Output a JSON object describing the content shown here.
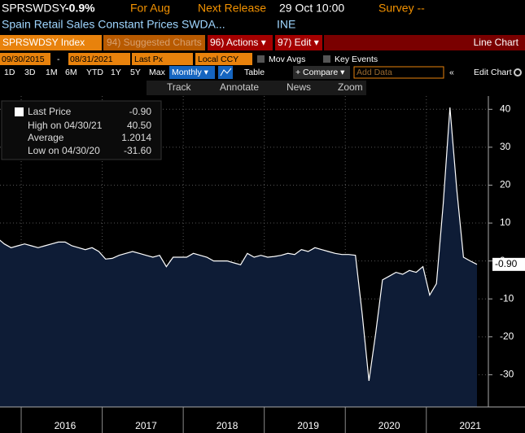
{
  "header": {
    "ticker": "SPRSWDSY",
    "change": "-0.9%",
    "period": "For Aug",
    "release_label": "Next Release",
    "release": "29 Oct 10:00",
    "survey": "Survey --",
    "description": "Spain Retail Sales Constant Prices SWDA...",
    "source": "INE"
  },
  "toolbar": {
    "security": "SPRSWDSY Index",
    "suggested": "94) Suggested Charts",
    "actions": "96) Actions ▾",
    "edit": "97) Edit ▾",
    "chart_kind": "Line Chart",
    "start_date": "09/30/2015",
    "dash": "-",
    "end_date": "08/31/2021",
    "field": "Last Px",
    "currency": "Local CCY",
    "mov_avgs": "Mov Avgs",
    "key_events": "Key Events",
    "ranges": [
      "1D",
      "3D",
      "1M",
      "6M",
      "YTD",
      "1Y",
      "5Y",
      "Max"
    ],
    "frequency": "Monthly ▾",
    "table": "Table",
    "compare": "+ Compare ▾",
    "add_data": "Add Data",
    "collapse": "«",
    "edit_chart": "Edit Chart",
    "tools": [
      "Track",
      "Annotate",
      "News",
      "Zoom"
    ]
  },
  "legend": {
    "items": [
      {
        "label": "Last Price",
        "value": "-0.90"
      },
      {
        "label": "High on 04/30/21",
        "value": "40.50"
      },
      {
        "label": "Average",
        "value": "1.2014"
      },
      {
        "label": "Low on 04/30/20",
        "value": "-31.60"
      }
    ]
  },
  "chart_data": {
    "type": "area",
    "color": "#ffffff",
    "fill": "#0e1c36",
    "categories": [
      null,
      null,
      null,
      null,
      null,
      null,
      null,
      null,
      null,
      null,
      "2016",
      null,
      null,
      null,
      null,
      null,
      null,
      null,
      null,
      null,
      null,
      null,
      "2017",
      null,
      null,
      null,
      null,
      null,
      null,
      null,
      null,
      null,
      null,
      null,
      "2018",
      null,
      null,
      null,
      null,
      null,
      null,
      null,
      null,
      null,
      null,
      null,
      "2019",
      null,
      null,
      null,
      null,
      null,
      null,
      null,
      null,
      null,
      null,
      null,
      "2020",
      null,
      null,
      null,
      null,
      null,
      null,
      null,
      null,
      null,
      null,
      null,
      "2021",
      null
    ],
    "values": [
      6,
      4.5,
      3.5,
      4,
      4.5,
      4,
      3.5,
      4,
      4.5,
      5,
      5,
      4,
      3.5,
      3,
      3.5,
      2.5,
      0.5,
      0.7,
      1.5,
      2,
      2.5,
      2,
      1.5,
      1,
      1.5,
      -1.5,
      1,
      1,
      1,
      2,
      1.5,
      1,
      0,
      0,
      0,
      -0.5,
      -1,
      2,
      1,
      1.5,
      1,
      1.2,
      1.5,
      2,
      1.7,
      3,
      2.5,
      3.5,
      3,
      2.5,
      2,
      1.7,
      1.7,
      1.5,
      -14,
      -31.6,
      -19,
      -5,
      -4,
      -3,
      -3.5,
      -2.5,
      -3,
      -1.5,
      -9,
      -6,
      15,
      40.5,
      19,
      1,
      0,
      -0.9
    ],
    "ylim": [
      -38.5,
      43.5
    ],
    "yticks": [
      -30,
      -20,
      -10,
      0,
      10,
      20,
      30,
      40
    ],
    "grid": true
  }
}
